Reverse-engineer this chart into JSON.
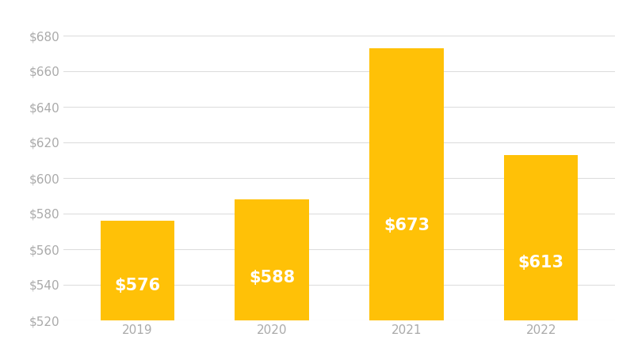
{
  "categories": [
    "2019",
    "2020",
    "2021",
    "2022"
  ],
  "values": [
    576,
    588,
    673,
    613
  ],
  "bar_color": "#FFC107",
  "label_color": "#FFFFFF",
  "label_fontsize": 15,
  "label_fontweight": "bold",
  "ylim_min": 520,
  "ylim_max": 690,
  "yticks": [
    520,
    540,
    560,
    580,
    600,
    620,
    640,
    660,
    680
  ],
  "tick_label_color": "#AAAAAA",
  "grid_color": "#DDDDDD",
  "background_color": "#FFFFFF",
  "bar_width": 0.55
}
